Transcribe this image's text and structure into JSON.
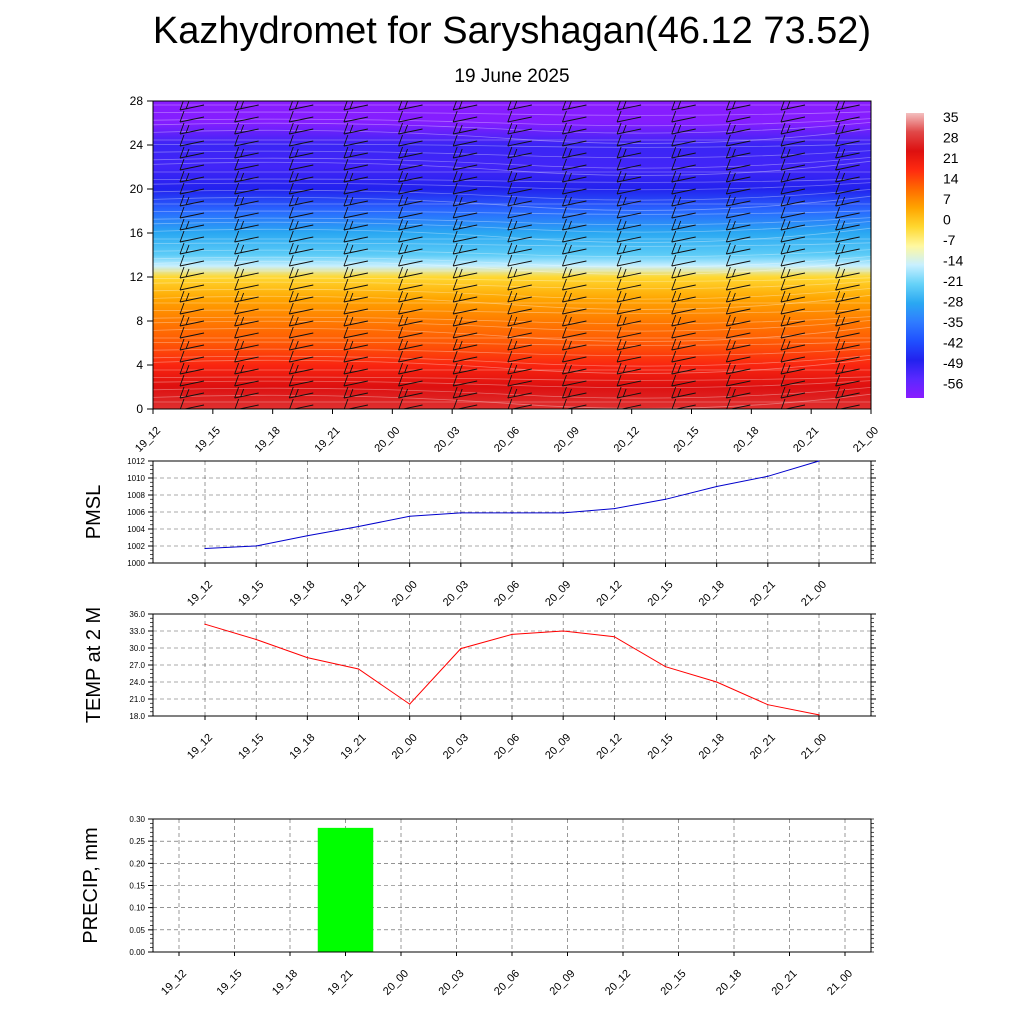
{
  "title": "Kazhydromet for Saryshagan(46.12 73.52)",
  "subtitle": "19 June 2025",
  "colors": {
    "temp_line": "#ff0000",
    "pmsl_line": "#0000cc",
    "precip_bar": "#00ff00"
  },
  "chart_data": [
    {
      "type": "heatmap",
      "name": "height-time temperature cross-section with wind barbs",
      "x_labels": [
        "19_12",
        "19_15",
        "19_18",
        "19_21",
        "20_00",
        "20_03",
        "20_06",
        "20_09",
        "20_12",
        "20_15",
        "20_18",
        "20_21",
        "21_00"
      ],
      "y_ticks": [
        0,
        4,
        8,
        12,
        16,
        20,
        24,
        28
      ],
      "ylim": [
        0,
        28
      ],
      "colorbar_labels": [
        "35",
        "28",
        "21",
        "14",
        "7",
        "0",
        "-7",
        "-14",
        "-21",
        "-28",
        "-35",
        "-42",
        "-49",
        "-56"
      ],
      "colorbar_range": [
        -63,
        42
      ],
      "temperature_profile_by_height": [
        {
          "y": 0,
          "t": 32
        },
        {
          "y": 2,
          "t": 28
        },
        {
          "y": 4,
          "t": 22
        },
        {
          "y": 6,
          "t": 16
        },
        {
          "y": 8,
          "t": 12
        },
        {
          "y": 10,
          "t": 7
        },
        {
          "y": 12,
          "t": 0
        },
        {
          "y": 13,
          "t": -14
        },
        {
          "y": 14,
          "t": -22
        },
        {
          "y": 16,
          "t": -28
        },
        {
          "y": 18,
          "t": -38
        },
        {
          "y": 20,
          "t": -49
        },
        {
          "y": 22,
          "t": -53
        },
        {
          "y": 24,
          "t": -52
        },
        {
          "y": 26,
          "t": -62
        },
        {
          "y": 28,
          "t": -63
        }
      ]
    },
    {
      "type": "line",
      "ylabel": "PMSL",
      "x": [
        "19_12",
        "19_15",
        "19_18",
        "19_21",
        "20_00",
        "20_03",
        "20_06",
        "20_09",
        "20_12",
        "20_15",
        "20_18",
        "20_21",
        "21_00"
      ],
      "values": [
        1001.7,
        1002.0,
        1003.2,
        1004.3,
        1005.5,
        1005.9,
        1005.9,
        1005.9,
        1006.4,
        1007.5,
        1009.0,
        1010.2,
        1012.0
      ],
      "y_ticks": [
        "1000",
        "1002",
        "1004",
        "1006",
        "1008",
        "1010",
        "1012"
      ],
      "ylim": [
        1000,
        1012
      ],
      "grid": true
    },
    {
      "type": "line",
      "ylabel": "TEMP at 2 M",
      "x": [
        "19_12",
        "19_15",
        "19_18",
        "19_21",
        "20_00",
        "20_03",
        "20_06",
        "20_09",
        "20_12",
        "20_15",
        "20_18",
        "20_21",
        "21_00"
      ],
      "values": [
        34.2,
        31.5,
        28.3,
        26.3,
        20.1,
        29.9,
        32.4,
        33.0,
        32.0,
        26.7,
        24.0,
        20.0,
        18.2
      ],
      "y_ticks": [
        "18.0",
        "21.0",
        "24.0",
        "27.0",
        "30.0",
        "33.0",
        "36.0"
      ],
      "ylim": [
        18,
        36
      ],
      "grid": true
    },
    {
      "type": "bar",
      "ylabel": "PRECIP, mm",
      "categories": [
        "19_12",
        "19_15",
        "19_18",
        "19_21",
        "20_00",
        "20_03",
        "20_06",
        "20_09",
        "20_12",
        "20_15",
        "20_18",
        "20_21",
        "21_00"
      ],
      "values": [
        0,
        0,
        0,
        0.28,
        0,
        0,
        0,
        0,
        0,
        0,
        0,
        0,
        0
      ],
      "y_ticks": [
        "0.00",
        "0.05",
        "0.10",
        "0.15",
        "0.20",
        "0.25",
        "0.30"
      ],
      "ylim": [
        0,
        0.3
      ],
      "grid": true
    }
  ]
}
